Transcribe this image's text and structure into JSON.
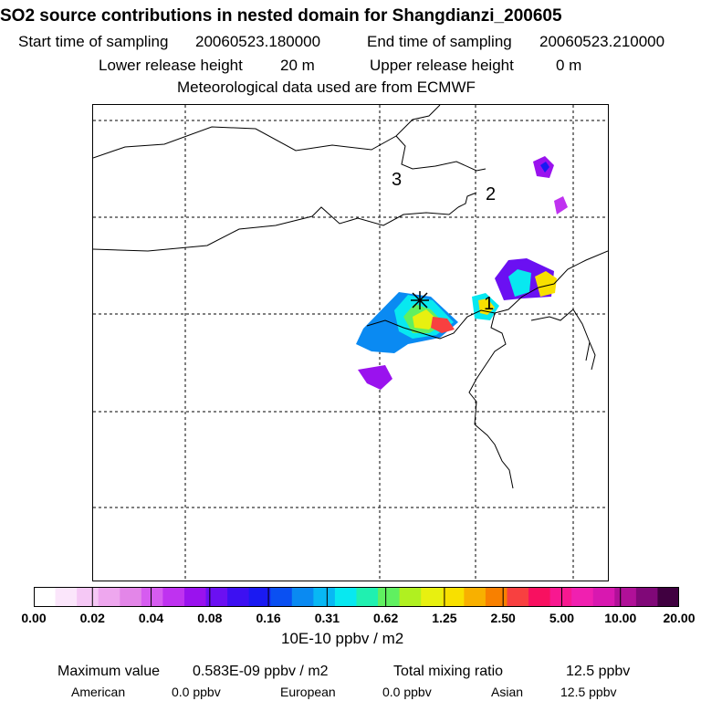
{
  "header": {
    "title": "SO2 source contributions in nested domain for Shangdianzi_200605",
    "start_label": "Start time of sampling",
    "start_value": "20060523.180000",
    "end_label": "End time of sampling",
    "end_value": "20060523.210000",
    "lower_label": "Lower release height",
    "lower_value": "20 m",
    "upper_label": "Upper release height",
    "upper_value": "0 m",
    "meteo": "Meteorological data used are from ECMWF"
  },
  "map": {
    "region_labels": [
      "3",
      "2",
      "1"
    ],
    "station_marker": "asterisk"
  },
  "colorbar": {
    "colors": [
      "#ffffff",
      "#fbe6fb",
      "#f5c8f5",
      "#eea7ee",
      "#e386e8",
      "#d65cf0",
      "#bf32f0",
      "#9a12ee",
      "#6b10f2",
      "#3d10f2",
      "#1a1af2",
      "#0a50f2",
      "#0a8af2",
      "#08b8f4",
      "#08e8f0",
      "#20f0b0",
      "#60f060",
      "#b0f020",
      "#e8f010",
      "#f8e000",
      "#f8b000",
      "#f88000",
      "#f84040",
      "#f81060",
      "#f81890",
      "#f020b0",
      "#d818b0",
      "#b01098",
      "#800878",
      "#400040"
    ],
    "tick_labels": [
      "0.00",
      "0.02",
      "0.04",
      "0.08",
      "0.16",
      "0.31",
      "0.62",
      "1.25",
      "2.50",
      "5.00",
      "10.00",
      "20.00"
    ],
    "unit": "10E-10 ppbv / m2"
  },
  "footer": {
    "max_label": "Maximum value",
    "max_value": "0.583E-09 ppbv / m2",
    "total_label": "Total mixing ratio",
    "total_value": "12.5 ppbv",
    "american_label": "American",
    "american_value": "0.0 ppbv",
    "european_label": "European",
    "european_value": "0.0 ppbv",
    "asian_label": "Asian",
    "asian_value": "12.5 ppbv"
  }
}
